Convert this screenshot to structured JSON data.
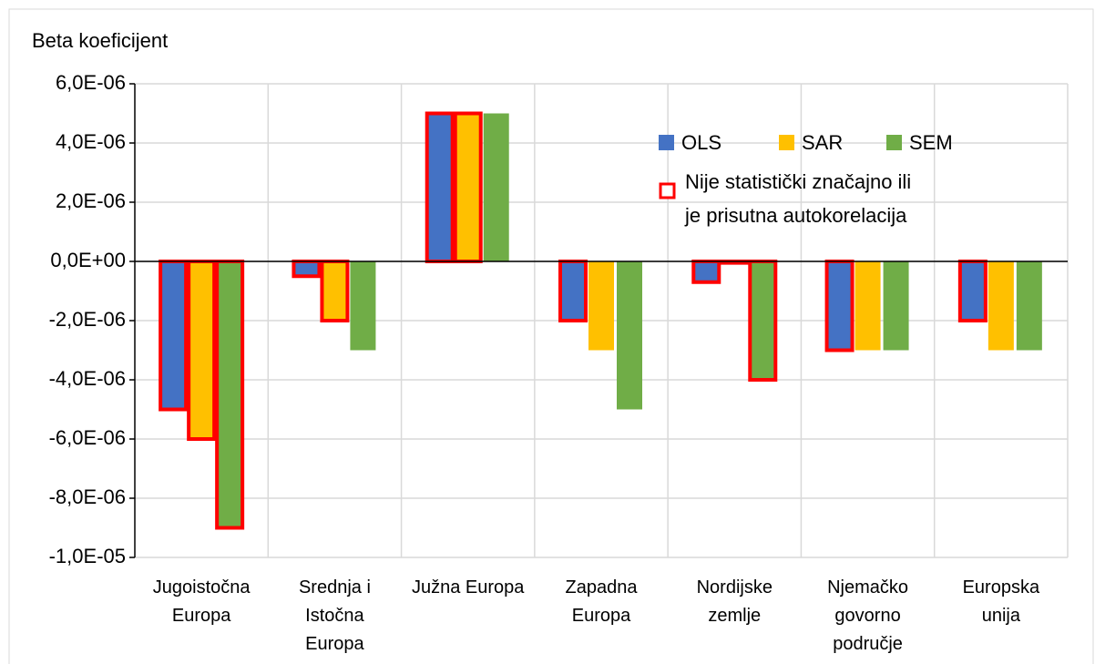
{
  "chart_data": {
    "type": "bar",
    "y_axis_label": "Beta koeficijent",
    "categories": [
      "Jugoistočna Europa",
      "Srednja i Istočna Europa",
      "Južna Europa",
      "Zapadna Europa",
      "Nordijske zemlje",
      "Njemačko govorno područje",
      "Europska unija"
    ],
    "series": [
      {
        "name": "OLS",
        "color": "#4472c4",
        "values": [
          -5e-06,
          -5e-07,
          5e-06,
          -2e-06,
          -7e-07,
          -3e-06,
          -2e-06
        ],
        "outlined": [
          true,
          true,
          true,
          true,
          true,
          true,
          true
        ]
      },
      {
        "name": "SAR",
        "color": "#ffc000",
        "values": [
          -6e-06,
          -2e-06,
          5e-06,
          -3e-06,
          -5e-08,
          -3e-06,
          -3e-06
        ],
        "outlined": [
          true,
          true,
          true,
          false,
          true,
          false,
          false
        ]
      },
      {
        "name": "SEM",
        "color": "#70ad47",
        "values": [
          -9e-06,
          -3e-06,
          5e-06,
          -5e-06,
          -4e-06,
          -3e-06,
          -3e-06
        ],
        "outlined": [
          true,
          false,
          false,
          false,
          true,
          false,
          false
        ]
      }
    ],
    "outline_color": "#ff0000",
    "outline_legend": [
      "Nije statistički značajno ili",
      "je prisutna autokorelacija"
    ],
    "ylim": [
      -1e-05,
      6e-06
    ],
    "yticks": [
      {
        "value": -1e-05,
        "label": "-1,0E-05"
      },
      {
        "value": -8e-06,
        "label": "-8,0E-06"
      },
      {
        "value": -6e-06,
        "label": "-6,0E-06"
      },
      {
        "value": -4e-06,
        "label": "-4,0E-06"
      },
      {
        "value": -2e-06,
        "label": "-2,0E-06"
      },
      {
        "value": 0,
        "label": "0,0E+00"
      },
      {
        "value": 2e-06,
        "label": "2,0E-06"
      },
      {
        "value": 4e-06,
        "label": "4,0E-06"
      },
      {
        "value": 6e-06,
        "label": "6,0E-06"
      }
    ],
    "grid": true
  }
}
